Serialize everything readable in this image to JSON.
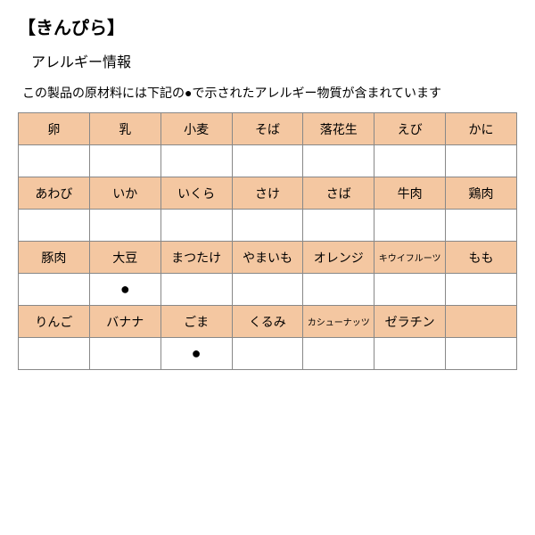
{
  "title": "【きんぴら】",
  "subtitle": "アレルギー情報",
  "description": "この製品の原材料には下記の●で示されたアレルギー物質が含まれています",
  "marker": "●",
  "colors": {
    "header_bg": "#f4c7a1",
    "value_bg": "#ffffff",
    "border": "#888888"
  },
  "allergens": {
    "row1": {
      "labels": [
        "卵",
        "乳",
        "小麦",
        "そば",
        "落花生",
        "えび",
        "かに"
      ],
      "values": [
        "",
        "",
        "",
        "",
        "",
        "",
        ""
      ]
    },
    "row2": {
      "labels": [
        "あわび",
        "いか",
        "いくら",
        "さけ",
        "さば",
        "牛肉",
        "鶏肉"
      ],
      "values": [
        "",
        "",
        "",
        "",
        "",
        "",
        ""
      ]
    },
    "row3": {
      "labels": [
        "豚肉",
        "大豆",
        "まつたけ",
        "やまいも",
        "オレンジ",
        "キウイフルーツ",
        "もも"
      ],
      "values": [
        "",
        "●",
        "",
        "",
        "",
        "",
        ""
      ]
    },
    "row4": {
      "labels": [
        "りんご",
        "バナナ",
        "ごま",
        "くるみ",
        "カシューナッツ",
        "ゼラチン",
        ""
      ],
      "values": [
        "",
        "",
        "●",
        "",
        "",
        "",
        ""
      ]
    }
  },
  "small_text_cells": [
    "キウイフルーツ",
    "カシューナッツ"
  ]
}
